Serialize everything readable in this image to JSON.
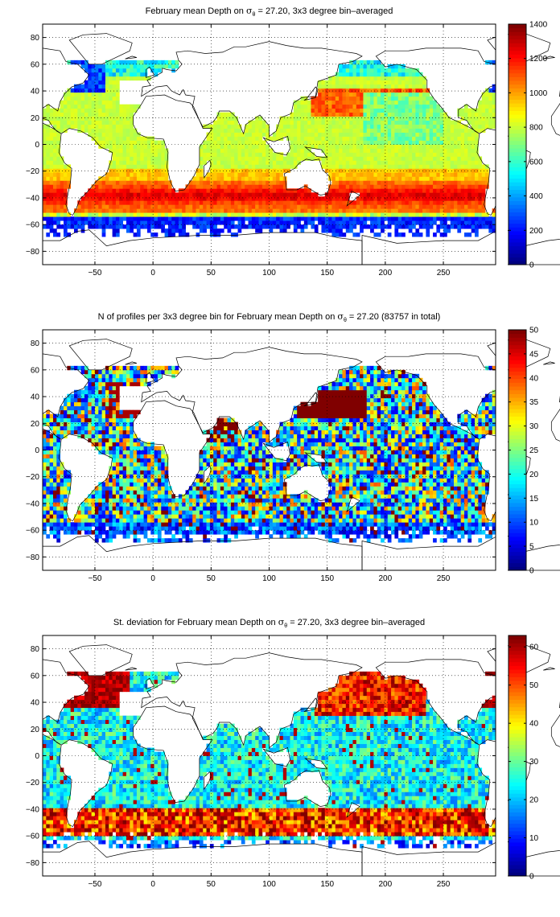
{
  "chart_data": [
    {
      "type": "heatmap",
      "title_parts": [
        "February mean Depth on ",
        "σ",
        "θ",
        " = 27.20, 3x3 degree bin–averaged"
      ],
      "xlim": [
        -95,
        295
      ],
      "ylim": [
        -90,
        90
      ],
      "xticks": [
        -50,
        0,
        50,
        100,
        150,
        200,
        250
      ],
      "yticks": [
        80,
        60,
        40,
        20,
        0,
        -20,
        -40,
        -60,
        -80
      ],
      "grid": true,
      "colorbar": {
        "min": 0,
        "max": 1400,
        "ticks": [
          1400,
          1200,
          1000,
          800,
          600,
          400,
          200,
          0
        ],
        "colormap": "jet"
      },
      "field": "depth"
    },
    {
      "type": "heatmap",
      "title_parts": [
        "N of profiles per 3x3 degree bin for February mean Depth on ",
        "σ",
        "θ",
        " = 27.20 (83757 in total)"
      ],
      "xlim": [
        -95,
        295
      ],
      "ylim": [
        -90,
        90
      ],
      "xticks": [
        -50,
        0,
        50,
        100,
        150,
        200,
        250
      ],
      "yticks": [
        80,
        60,
        40,
        20,
        0,
        -20,
        -40,
        -60,
        -80
      ],
      "grid": true,
      "colorbar": {
        "min": 0,
        "max": 50,
        "ticks": [
          50,
          45,
          40,
          35,
          30,
          25,
          20,
          15,
          10,
          5,
          0
        ],
        "colormap": "jet"
      },
      "field": "count"
    },
    {
      "type": "heatmap",
      "title_parts": [
        "St. deviation for February mean Depth on ",
        "σ",
        "θ",
        " = 27.20, 3x3 degree bin–averaged"
      ],
      "xlim": [
        -95,
        295
      ],
      "ylim": [
        -90,
        90
      ],
      "xticks": [
        -50,
        0,
        50,
        100,
        150,
        200,
        250
      ],
      "yticks": [
        80,
        60,
        40,
        20,
        0,
        -20,
        -40,
        -60,
        -80
      ],
      "grid": true,
      "colorbar": {
        "min": 0,
        "max": 63,
        "ticks": [
          60,
          50,
          40,
          30,
          20,
          10,
          0
        ],
        "colormap": "jet"
      },
      "field": "std"
    }
  ]
}
